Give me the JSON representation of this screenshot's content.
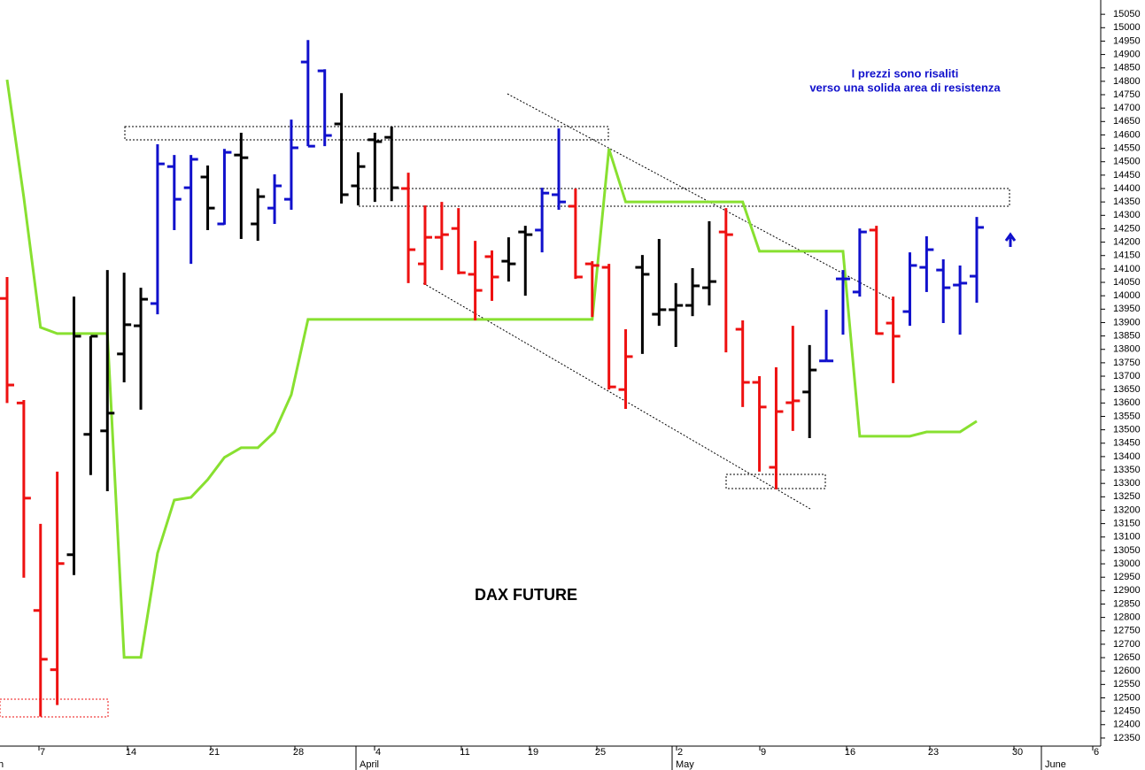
{
  "chart_data": {
    "type": "ohlc",
    "title": "DAX FUTURE",
    "annotation": [
      "I prezzi sono risaliti",
      "verso una solida area di resistenza"
    ],
    "day_labels": [
      "7",
      "14",
      "21",
      "28",
      "4",
      "11",
      "19",
      "25",
      "2",
      "9",
      "16",
      "23",
      "30",
      "6"
    ],
    "month_labels": [
      "h",
      "April",
      "May",
      "June"
    ],
    "ylim": [
      12320,
      15100
    ],
    "yticks": [
      12350,
      12400,
      12450,
      12500,
      12550,
      12600,
      12650,
      12700,
      12750,
      12800,
      12850,
      12900,
      12950,
      13000,
      13050,
      13100,
      13150,
      13200,
      13250,
      13300,
      13350,
      13400,
      13450,
      13500,
      13550,
      13600,
      13650,
      13700,
      13750,
      13800,
      13850,
      13900,
      13950,
      14000,
      14050,
      14100,
      14150,
      14200,
      14250,
      14300,
      14350,
      14400,
      14450,
      14500,
      14550,
      14600,
      14650,
      14700,
      14750,
      14800,
      14850,
      14900,
      14950,
      15000,
      15050
    ],
    "ohlc": {
      "open": [
        13990,
        13600,
        12826,
        12605,
        13034,
        13483,
        13496,
        13783,
        13888,
        13971,
        14482,
        14403,
        14443,
        14268,
        14525,
        14268,
        14327,
        14360,
        14872,
        14839,
        14641,
        14410,
        14582,
        14591,
        14400,
        14119,
        14218,
        14251,
        14080,
        14146,
        14129,
        14238,
        14245,
        14377,
        14334,
        14119,
        14106,
        13650,
        14106,
        13931,
        13948,
        13964,
        14030,
        14238,
        13875,
        13677,
        13360,
        13601,
        13641,
        13757,
        14063,
        14014,
        14245,
        13898,
        13941,
        14106,
        14096,
        14040,
        14073
      ],
      "high": [
        14070,
        13611,
        13149,
        13344,
        13997,
        13849,
        14096,
        14086,
        14030,
        14565,
        14525,
        14525,
        14486,
        14548,
        14608,
        14400,
        14453,
        14657,
        14954,
        14845,
        14756,
        14535,
        14608,
        14631,
        14459,
        14337,
        14350,
        14327,
        14205,
        14169,
        14218,
        14261,
        14403,
        14624,
        14400,
        14129,
        14119,
        13875,
        14152,
        14212,
        14047,
        14103,
        14278,
        14327,
        13908,
        13700,
        13733,
        13888,
        13816,
        13948,
        14096,
        14251,
        14261,
        13997,
        14162,
        14222,
        14136,
        14113,
        14294
      ],
      "low": [
        13600,
        12948,
        12430,
        12473,
        12958,
        13331,
        13271,
        13677,
        13575,
        13931,
        14245,
        14119,
        14245,
        14265,
        14212,
        14205,
        14268,
        14321,
        14558,
        14558,
        14344,
        14337,
        14350,
        14353,
        14047,
        14040,
        14096,
        14080,
        13908,
        13981,
        14053,
        14000,
        14162,
        14321,
        14063,
        13921,
        13650,
        13578,
        13783,
        13888,
        13809,
        13924,
        13964,
        13789,
        13585,
        13344,
        13278,
        13496,
        13469,
        13757,
        13855,
        13997,
        13855,
        13674,
        13888,
        14014,
        13898,
        13855,
        13974
      ],
      "close": [
        13667,
        13245,
        12644,
        13001,
        13849,
        13849,
        13562,
        13892,
        13987,
        14492,
        14360,
        14509,
        14327,
        14535,
        14515,
        14370,
        14410,
        14552,
        14558,
        14598,
        14377,
        14482,
        14575,
        14403,
        14172,
        14218,
        14228,
        14086,
        14020,
        14070,
        14119,
        14228,
        14383,
        14350,
        14070,
        14113,
        13660,
        13773,
        14080,
        13948,
        13964,
        14037,
        14053,
        14228,
        13677,
        13585,
        13568,
        13608,
        13723,
        13757,
        14063,
        14238,
        13859,
        13849,
        14113,
        14172,
        14030,
        14047,
        14255
      ],
      "colors": [
        "#ee1111",
        "#ee1111",
        "#ee1111",
        "#ee1111",
        "#000000",
        "#000000",
        "#000000",
        "#000000",
        "#000000",
        "#1010cc",
        "#1010cc",
        "#1010cc",
        "#000000",
        "#1010cc",
        "#000000",
        "#000000",
        "#1010cc",
        "#1010cc",
        "#1010cc",
        "#1010cc",
        "#000000",
        "#000000",
        "#000000",
        "#000000",
        "#ee1111",
        "#ee1111",
        "#ee1111",
        "#ee1111",
        "#ee1111",
        "#ee1111",
        "#000000",
        "#000000",
        "#1010cc",
        "#1010cc",
        "#ee1111",
        "#ee1111",
        "#ee1111",
        "#ee1111",
        "#000000",
        "#000000",
        "#000000",
        "#000000",
        "#000000",
        "#ee1111",
        "#ee1111",
        "#ee1111",
        "#ee1111",
        "#ee1111",
        "#000000",
        "#1010cc",
        "#1010cc",
        "#1010cc",
        "#ee1111",
        "#ee1111",
        "#1010cc",
        "#1010cc",
        "#1010cc",
        "#1010cc",
        "#1010cc"
      ]
    },
    "line": {
      "color": "#88e030",
      "values": [
        14806,
        14367,
        13882,
        13859,
        13859,
        13859,
        13859,
        12651,
        12651,
        13040,
        13238,
        13248,
        13314,
        13397,
        13433,
        13433,
        13492,
        13631,
        13912,
        13912,
        13912,
        13912,
        13912,
        13912,
        13912,
        13912,
        13912,
        13912,
        13912,
        13912,
        13912,
        13912,
        13912,
        13912,
        13912,
        13912,
        14548,
        14350,
        14350,
        14350,
        14350,
        14350,
        14350,
        14350,
        14350,
        14166,
        14166,
        14166,
        14166,
        14166,
        14166,
        13476,
        13476,
        13476,
        13476,
        13492,
        13492,
        13492,
        13532
      ]
    }
  }
}
